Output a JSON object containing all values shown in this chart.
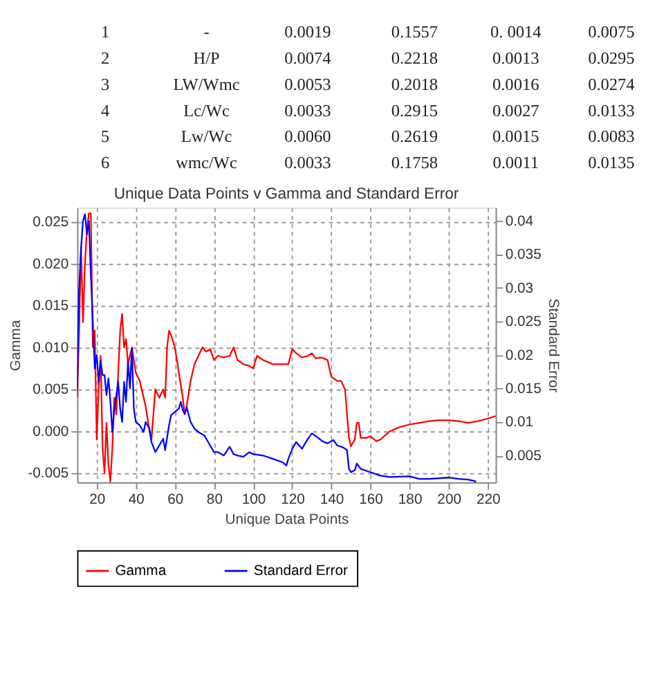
{
  "chart_data": {
    "annotations": [
      "1",
      "-",
      "0.0019",
      "0.1557",
      "0. 0014",
      "0.0075",
      "2",
      "H/P",
      "0.0074",
      "0.2218",
      "0.0013",
      "0.0295",
      "3",
      "LW/Wmc",
      "0.0053",
      "0.2018",
      "0.0016",
      "0.0274",
      "4",
      "Lc/Wc",
      "0.0033",
      "0.2915",
      "0.0027",
      "0.0133",
      "5",
      "Lw/Wc",
      "0.0060",
      "0.2619",
      "0.0015",
      "0.0083",
      "6",
      "wmc/Wc",
      "0.0033",
      "0.1758",
      "0.0011",
      "0.0135"
    ],
    "type": "line",
    "title": "Unique Data Points v Gamma and Standard Error",
    "xlabel": "Unique Data Points",
    "ylabel": "Gamma",
    "y2label": "Standard Error",
    "xlim": [
      10,
      224
    ],
    "xticks": [
      20,
      40,
      60,
      80,
      100,
      120,
      140,
      160,
      180,
      200,
      220
    ],
    "ylim": [
      -0.0061,
      0.0267
    ],
    "yticks": [
      -0.005,
      {
        "value": 0,
        "label": "0.000"
      },
      0.005,
      {
        "value": 0.01,
        "label": "0.010"
      },
      0.015,
      {
        "value": 0.02,
        "label": "0.020"
      },
      0.025
    ],
    "y2lim": [
      0.001,
      0.042
    ],
    "y2ticks": [
      0.005,
      0.01,
      0.015,
      0.02,
      0.025,
      0.03,
      0.035,
      0.04
    ],
    "grid": true,
    "legend": "bottom",
    "line_style": "solid",
    "marker": "none",
    "series": [
      {
        "name": "Gamma",
        "color": "#ff0000",
        "x": [
          10,
          11,
          12,
          13,
          14,
          15,
          16,
          17,
          18,
          19,
          20,
          21,
          22,
          23,
          24,
          25,
          26,
          27,
          28,
          29,
          30,
          32,
          33,
          34,
          35,
          36,
          38,
          40,
          42,
          45,
          47,
          48,
          50,
          52,
          54,
          55,
          56,
          57,
          58,
          60,
          62,
          64,
          65,
          66,
          68,
          70,
          72,
          74,
          76,
          78,
          80,
          82,
          85,
          88,
          90,
          92,
          95,
          98,
          100,
          102,
          105,
          110,
          115,
          118,
          120,
          122,
          125,
          128,
          130,
          132,
          135,
          138,
          140,
          143,
          145,
          147,
          148,
          149,
          150,
          152,
          153,
          154,
          155,
          158,
          160,
          163,
          165,
          170,
          175,
          180,
          185,
          190,
          195,
          200,
          205,
          210,
          215,
          220,
          224
        ],
        "values": [
          0.004,
          0.012,
          0.022,
          0.013,
          0.02,
          0.024,
          0.026,
          0.026,
          0.01,
          0.012,
          -0.001,
          0.005,
          0.009,
          -0.002,
          -0.005,
          0.001,
          -0.004,
          -0.006,
          -0.002,
          0.004,
          0.002,
          0.012,
          0.014,
          0.01,
          0.011,
          0.008,
          0.01,
          0.007,
          0.006,
          0.003,
          0.0,
          -0.001,
          0.005,
          0.004,
          0.005,
          0.004,
          0.01,
          0.012,
          0.0115,
          0.01,
          0.007,
          0.004,
          0.002,
          0.003,
          0.006,
          0.008,
          0.009,
          0.01,
          0.0095,
          0.0098,
          0.0085,
          0.009,
          0.0088,
          0.009,
          0.01,
          0.0085,
          0.008,
          0.0078,
          0.0075,
          0.009,
          0.0085,
          0.008,
          0.008,
          0.008,
          0.0098,
          0.0093,
          0.0088,
          0.009,
          0.0093,
          0.0087,
          0.0088,
          0.0085,
          0.0065,
          0.006,
          0.006,
          0.005,
          0.002,
          -0.0008,
          -0.0018,
          -0.001,
          0.001,
          0.001,
          -0.0008,
          -0.0008,
          -0.0006,
          -0.0012,
          -0.001,
          0.0,
          0.0005,
          0.0008,
          0.001,
          0.0012,
          0.0013,
          0.0013,
          0.0012,
          0.001,
          0.0012,
          0.0015,
          0.0018
        ]
      },
      {
        "name": "Standard Error",
        "color": "#0000ff",
        "axis": "y2",
        "x": [
          10,
          11,
          12,
          13,
          14,
          15,
          16,
          17,
          18,
          19,
          20,
          21,
          22,
          23,
          24,
          25,
          26,
          27,
          28,
          29,
          30,
          31,
          32,
          33,
          34,
          35,
          36,
          37,
          38,
          39,
          40,
          42,
          44,
          45,
          47,
          48,
          50,
          52,
          54,
          55,
          57,
          58,
          60,
          62,
          63,
          64,
          65,
          66,
          68,
          70,
          72,
          75,
          78,
          80,
          82,
          85,
          88,
          90,
          92,
          95,
          98,
          100,
          105,
          110,
          115,
          117,
          118,
          120,
          122,
          125,
          128,
          130,
          133,
          135,
          138,
          141,
          143,
          146,
          148,
          149,
          150,
          152,
          153,
          155,
          160,
          165,
          170,
          180,
          185,
          190,
          200,
          205,
          210,
          213,
          214
        ],
        "values": [
          0.015,
          0.03,
          0.036,
          0.04,
          0.041,
          0.038,
          0.04,
          0.032,
          0.025,
          0.018,
          0.02,
          0.016,
          0.0192,
          0.017,
          0.017,
          0.014,
          0.0165,
          0.013,
          0.0085,
          0.012,
          0.014,
          0.016,
          0.012,
          0.01,
          0.016,
          0.013,
          0.019,
          0.015,
          0.021,
          0.012,
          0.01,
          0.0095,
          0.0085,
          0.01,
          0.009,
          0.007,
          0.0055,
          0.0065,
          0.0075,
          0.0058,
          0.0095,
          0.011,
          0.0115,
          0.012,
          0.013,
          0.0118,
          0.0112,
          0.0122,
          0.01,
          0.009,
          0.0085,
          0.008,
          0.0065,
          0.0055,
          0.0055,
          0.005,
          0.0063,
          0.0052,
          0.005,
          0.0048,
          0.0055,
          0.0052,
          0.005,
          0.0045,
          0.004,
          0.0035,
          0.0045,
          0.006,
          0.007,
          0.006,
          0.0075,
          0.0083,
          0.0077,
          0.0072,
          0.0068,
          0.0073,
          0.0065,
          0.0062,
          0.0058,
          0.003,
          0.0025,
          0.0028,
          0.0038,
          0.003,
          0.0025,
          0.002,
          0.0018,
          0.0019,
          0.0015,
          0.0015,
          0.0017,
          0.0015,
          0.0014,
          0.0012,
          0.0011
        ]
      }
    ]
  }
}
